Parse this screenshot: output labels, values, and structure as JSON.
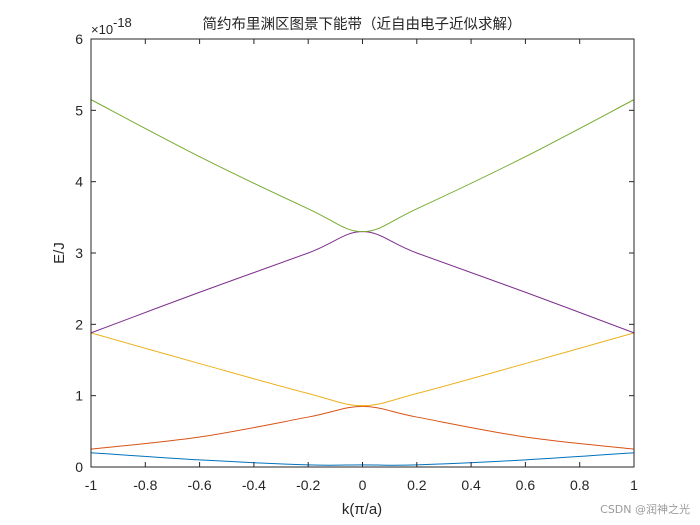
{
  "chart_data": {
    "type": "line",
    "title": "简约布里渊区图景下能带（近自由电子近似求解）",
    "xlabel": "k(π/a)",
    "ylabel": "E/J",
    "y_exponent_label": "×10",
    "y_exponent_power": "-18",
    "xlim": [
      -1,
      1
    ],
    "ylim": [
      0,
      6
    ],
    "x_ticks": [
      -1,
      -0.8,
      -0.6,
      -0.4,
      -0.2,
      0,
      0.2,
      0.4,
      0.6,
      0.8,
      1
    ],
    "x_tick_labels": [
      "-1",
      "-0.8",
      "-0.6",
      "-0.4",
      "-0.2",
      "0",
      "0.2",
      "0.4",
      "0.6",
      "0.8",
      "1"
    ],
    "y_ticks": [
      0,
      1,
      2,
      3,
      4,
      5,
      6
    ],
    "y_tick_labels": [
      "0",
      "1",
      "2",
      "3",
      "4",
      "5",
      "6"
    ],
    "grid": false,
    "series": [
      {
        "color": "#0072BD",
        "x": [
          -1,
          -0.6,
          -0.2,
          0,
          0.2,
          0.6,
          1
        ],
        "y": [
          0.2,
          0.1,
          0.03,
          0.03,
          0.03,
          0.1,
          0.2
        ]
      },
      {
        "color": "#D95319",
        "x": [
          -1,
          -0.6,
          -0.2,
          0,
          0.2,
          0.6,
          1
        ],
        "y": [
          0.25,
          0.42,
          0.7,
          0.85,
          0.7,
          0.42,
          0.25
        ]
      },
      {
        "color": "#EDB120",
        "x": [
          -1,
          -0.6,
          -0.2,
          0,
          0.2,
          0.6,
          1
        ],
        "y": [
          1.88,
          1.45,
          1.03,
          0.86,
          1.03,
          1.45,
          1.88
        ]
      },
      {
        "color": "#7E2F8E",
        "x": [
          -1,
          -0.6,
          -0.2,
          0,
          0.2,
          0.6,
          1
        ],
        "y": [
          1.88,
          2.45,
          3.0,
          3.3,
          3.0,
          2.45,
          1.88
        ]
      },
      {
        "color": "#77AC30",
        "x": [
          -1,
          -0.6,
          -0.2,
          0,
          0.2,
          0.6,
          1
        ],
        "y": [
          5.15,
          4.35,
          3.62,
          3.3,
          3.62,
          4.35,
          5.15
        ]
      }
    ]
  },
  "watermark": "CSDN @润神之光"
}
